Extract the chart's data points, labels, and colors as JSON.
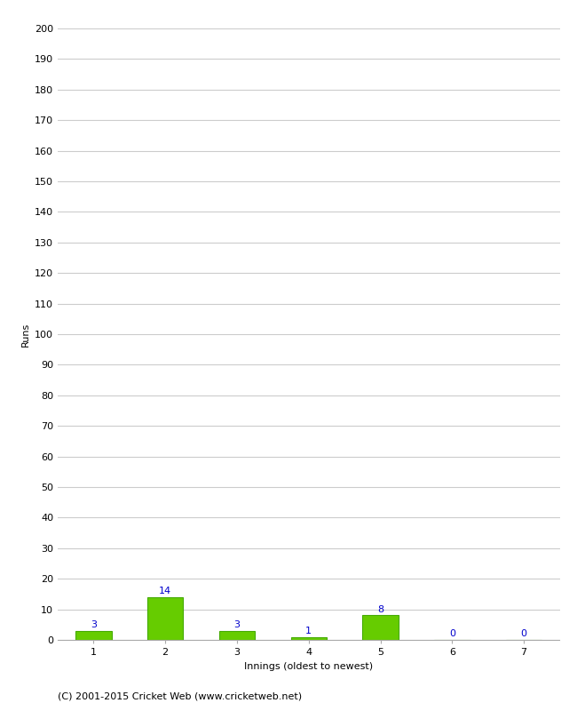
{
  "categories": [
    1,
    2,
    3,
    4,
    5,
    6,
    7
  ],
  "values": [
    3,
    14,
    3,
    1,
    8,
    0,
    0
  ],
  "bar_color": "#66cc00",
  "bar_edge_color": "#44aa00",
  "label_color": "#0000cc",
  "xlabel": "Innings (oldest to newest)",
  "ylabel": "Runs",
  "ylim": [
    0,
    200
  ],
  "ytick_step": 10,
  "background_color": "#ffffff",
  "grid_color": "#cccccc",
  "footer": "(C) 2001-2015 Cricket Web (www.cricketweb.net)",
  "footer_fontsize": 8,
  "label_fontsize": 8,
  "axis_fontsize": 8,
  "ylabel_fontsize": 8,
  "xlabel_fontsize": 8
}
